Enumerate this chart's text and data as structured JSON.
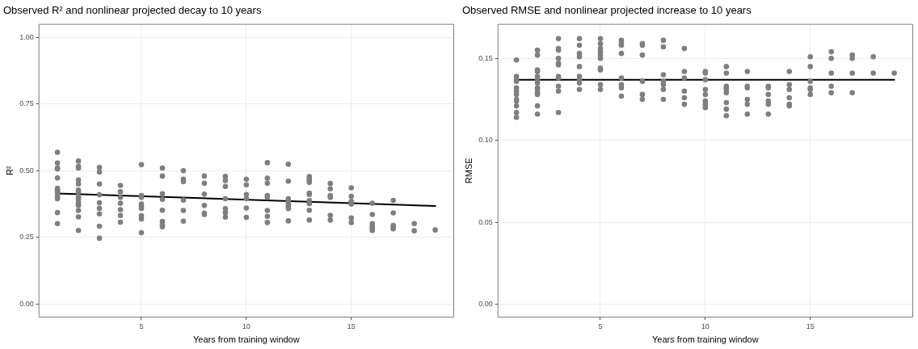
{
  "chart_data": [
    {
      "type": "scatter",
      "title": "Observed R² and nonlinear projected decay to 10 years",
      "xlabel": "Years from training window",
      "ylabel": "R²",
      "xlim": [
        0.1,
        19.9
      ],
      "xticks": [
        5,
        10,
        15
      ],
      "ylim": [
        -0.05,
        1.05
      ],
      "yticks": [
        {
          "value": 0,
          "label": "0.00"
        },
        {
          "value": 0.25,
          "label": "0.25"
        },
        {
          "value": 0.5,
          "label": "0.50"
        },
        {
          "value": 0.75,
          "label": "0.75"
        },
        {
          "value": 1,
          "label": "1.00"
        }
      ],
      "grid": true,
      "series": [
        {
          "marker": "circle",
          "color": "#7f7f7f",
          "x": [
            1,
            1,
            1,
            1,
            1,
            1,
            1,
            1,
            1,
            1,
            1,
            1,
            1,
            2,
            2,
            2,
            2,
            2,
            2,
            2,
            2,
            2,
            2,
            2,
            2,
            2,
            2,
            2,
            3,
            3,
            3,
            3,
            3,
            3,
            3,
            3,
            3,
            4,
            4,
            4,
            4,
            4,
            4,
            4,
            5,
            5,
            5,
            5,
            5,
            5,
            5,
            5,
            5,
            6,
            6,
            6,
            6,
            6,
            6,
            6,
            6,
            7,
            7,
            7,
            7,
            7,
            7,
            8,
            8,
            8,
            8,
            8,
            8,
            9,
            9,
            9,
            9,
            9,
            9,
            9,
            10,
            10,
            10,
            10,
            10,
            10,
            11,
            11,
            11,
            11,
            11,
            11,
            11,
            11,
            12,
            12,
            12,
            12,
            12,
            12,
            12,
            12,
            13,
            13,
            13,
            13,
            13,
            13,
            13,
            13,
            13,
            13,
            14,
            14,
            14,
            14,
            14,
            14,
            15,
            15,
            15,
            15,
            15,
            15,
            16,
            16,
            16,
            16,
            16,
            16,
            17,
            17,
            17,
            17,
            17,
            18,
            18,
            19
          ],
          "values": [
            0.569,
            0.529,
            0.51,
            0.506,
            0.473,
            0.434,
            0.427,
            0.422,
            0.418,
            0.405,
            0.395,
            0.343,
            0.302,
            0.536,
            0.516,
            0.51,
            0.465,
            0.45,
            0.427,
            0.419,
            0.4,
            0.395,
            0.382,
            0.375,
            0.37,
            0.351,
            0.327,
            0.276,
            0.512,
            0.495,
            0.45,
            0.41,
            0.38,
            0.359,
            0.338,
            0.292,
            0.247,
            0.445,
            0.421,
            0.4,
            0.378,
            0.354,
            0.332,
            0.307,
            0.523,
            0.407,
            0.4,
            0.375,
            0.367,
            0.359,
            0.331,
            0.319,
            0.268,
            0.51,
            0.48,
            0.414,
            0.393,
            0.352,
            0.31,
            0.297,
            0.29,
            0.5,
            0.468,
            0.459,
            0.39,
            0.351,
            0.311,
            0.48,
            0.453,
            0.412,
            0.37,
            0.341,
            0.336,
            0.479,
            0.463,
            0.441,
            0.395,
            0.358,
            0.343,
            0.326,
            0.468,
            0.447,
            0.411,
            0.395,
            0.36,
            0.325,
            0.53,
            0.472,
            0.453,
            0.407,
            0.4,
            0.351,
            0.329,
            0.306,
            0.524,
            0.461,
            0.395,
            0.388,
            0.378,
            0.368,
            0.358,
            0.312,
            0.478,
            0.47,
            0.463,
            0.456,
            0.416,
            0.411,
            0.388,
            0.377,
            0.352,
            0.315,
            0.452,
            0.432,
            0.407,
            0.4,
            0.333,
            0.315,
            0.436,
            0.404,
            0.385,
            0.375,
            0.323,
            0.306,
            0.378,
            0.336,
            0.302,
            0.292,
            0.284,
            0.276,
            0.389,
            0.342,
            0.295,
            0.289,
            0.282,
            0.302,
            0.275,
            0.278
          ]
        },
        {
          "type": "line",
          "marker": "none",
          "color": "#000000",
          "x": [
            1,
            19
          ],
          "values": [
            0.415,
            0.368
          ]
        }
      ]
    },
    {
      "type": "scatter",
      "title": "Observed RMSE and nonlinear projected increase to 10 years",
      "xlabel": "Years from training window",
      "ylabel": "RMSE",
      "xlim": [
        0.1,
        19.9
      ],
      "xticks": [
        5,
        10,
        15
      ],
      "ylim": [
        -0.008,
        0.171
      ],
      "yticks": [
        {
          "value": 0,
          "label": "0.00"
        },
        {
          "value": 0.05,
          "label": "0.05"
        },
        {
          "value": 0.1,
          "label": "0.10"
        },
        {
          "value": 0.15,
          "label": "0.15"
        }
      ],
      "grid": true,
      "series": [
        {
          "marker": "circle",
          "color": "#7f7f7f",
          "x": [
            1,
            1,
            1,
            1,
            1,
            1,
            1,
            1,
            1,
            1,
            1,
            1,
            2,
            2,
            2,
            2,
            2,
            2,
            2,
            2,
            2,
            2,
            2,
            2,
            2,
            3,
            3,
            3,
            3,
            3,
            3,
            3,
            3,
            3,
            3,
            3,
            4,
            4,
            4,
            4,
            4,
            4,
            4,
            4,
            4,
            5,
            5,
            5,
            5,
            5,
            5,
            5,
            5,
            5,
            5,
            6,
            6,
            6,
            6,
            6,
            6,
            6,
            6,
            7,
            7,
            7,
            7,
            7,
            7,
            8,
            8,
            8,
            8,
            8,
            8,
            8,
            9,
            9,
            9,
            9,
            9,
            9,
            10,
            10,
            10,
            10,
            10,
            10,
            10,
            10,
            11,
            11,
            11,
            11,
            11,
            11,
            11,
            11,
            11,
            12,
            12,
            12,
            12,
            12,
            12,
            13,
            13,
            13,
            13,
            13,
            13,
            14,
            14,
            14,
            14,
            14,
            14,
            15,
            15,
            15,
            15,
            15,
            15,
            16,
            16,
            16,
            16,
            16,
            17,
            17,
            17,
            17,
            18,
            18,
            19
          ],
          "values": [
            0.149,
            0.139,
            0.137,
            0.136,
            0.132,
            0.13,
            0.128,
            0.125,
            0.124,
            0.121,
            0.117,
            0.114,
            0.155,
            0.152,
            0.143,
            0.142,
            0.139,
            0.137,
            0.135,
            0.132,
            0.131,
            0.129,
            0.128,
            0.121,
            0.116,
            0.162,
            0.156,
            0.155,
            0.15,
            0.147,
            0.146,
            0.139,
            0.138,
            0.133,
            0.13,
            0.117,
            0.162,
            0.158,
            0.153,
            0.151,
            0.145,
            0.139,
            0.137,
            0.135,
            0.131,
            0.162,
            0.159,
            0.156,
            0.154,
            0.152,
            0.15,
            0.144,
            0.143,
            0.134,
            0.131,
            0.161,
            0.159,
            0.158,
            0.153,
            0.138,
            0.134,
            0.132,
            0.127,
            0.159,
            0.158,
            0.152,
            0.136,
            0.128,
            0.125,
            0.161,
            0.157,
            0.14,
            0.136,
            0.134,
            0.131,
            0.125,
            0.156,
            0.142,
            0.138,
            0.13,
            0.126,
            0.122,
            0.142,
            0.141,
            0.137,
            0.131,
            0.128,
            0.124,
            0.122,
            0.12,
            0.145,
            0.141,
            0.133,
            0.132,
            0.131,
            0.129,
            0.123,
            0.119,
            0.115,
            0.142,
            0.133,
            0.132,
            0.125,
            0.122,
            0.116,
            0.133,
            0.132,
            0.128,
            0.124,
            0.122,
            0.116,
            0.142,
            0.134,
            0.131,
            0.126,
            0.122,
            0.121,
            0.151,
            0.145,
            0.136,
            0.132,
            0.131,
            0.128,
            0.154,
            0.15,
            0.141,
            0.133,
            0.129,
            0.152,
            0.15,
            0.141,
            0.129,
            0.151,
            0.141,
            0.141
          ]
        },
        {
          "type": "line",
          "marker": "none",
          "color": "#000000",
          "x": [
            1,
            19
          ],
          "values": [
            0.137,
            0.137
          ]
        }
      ]
    }
  ]
}
